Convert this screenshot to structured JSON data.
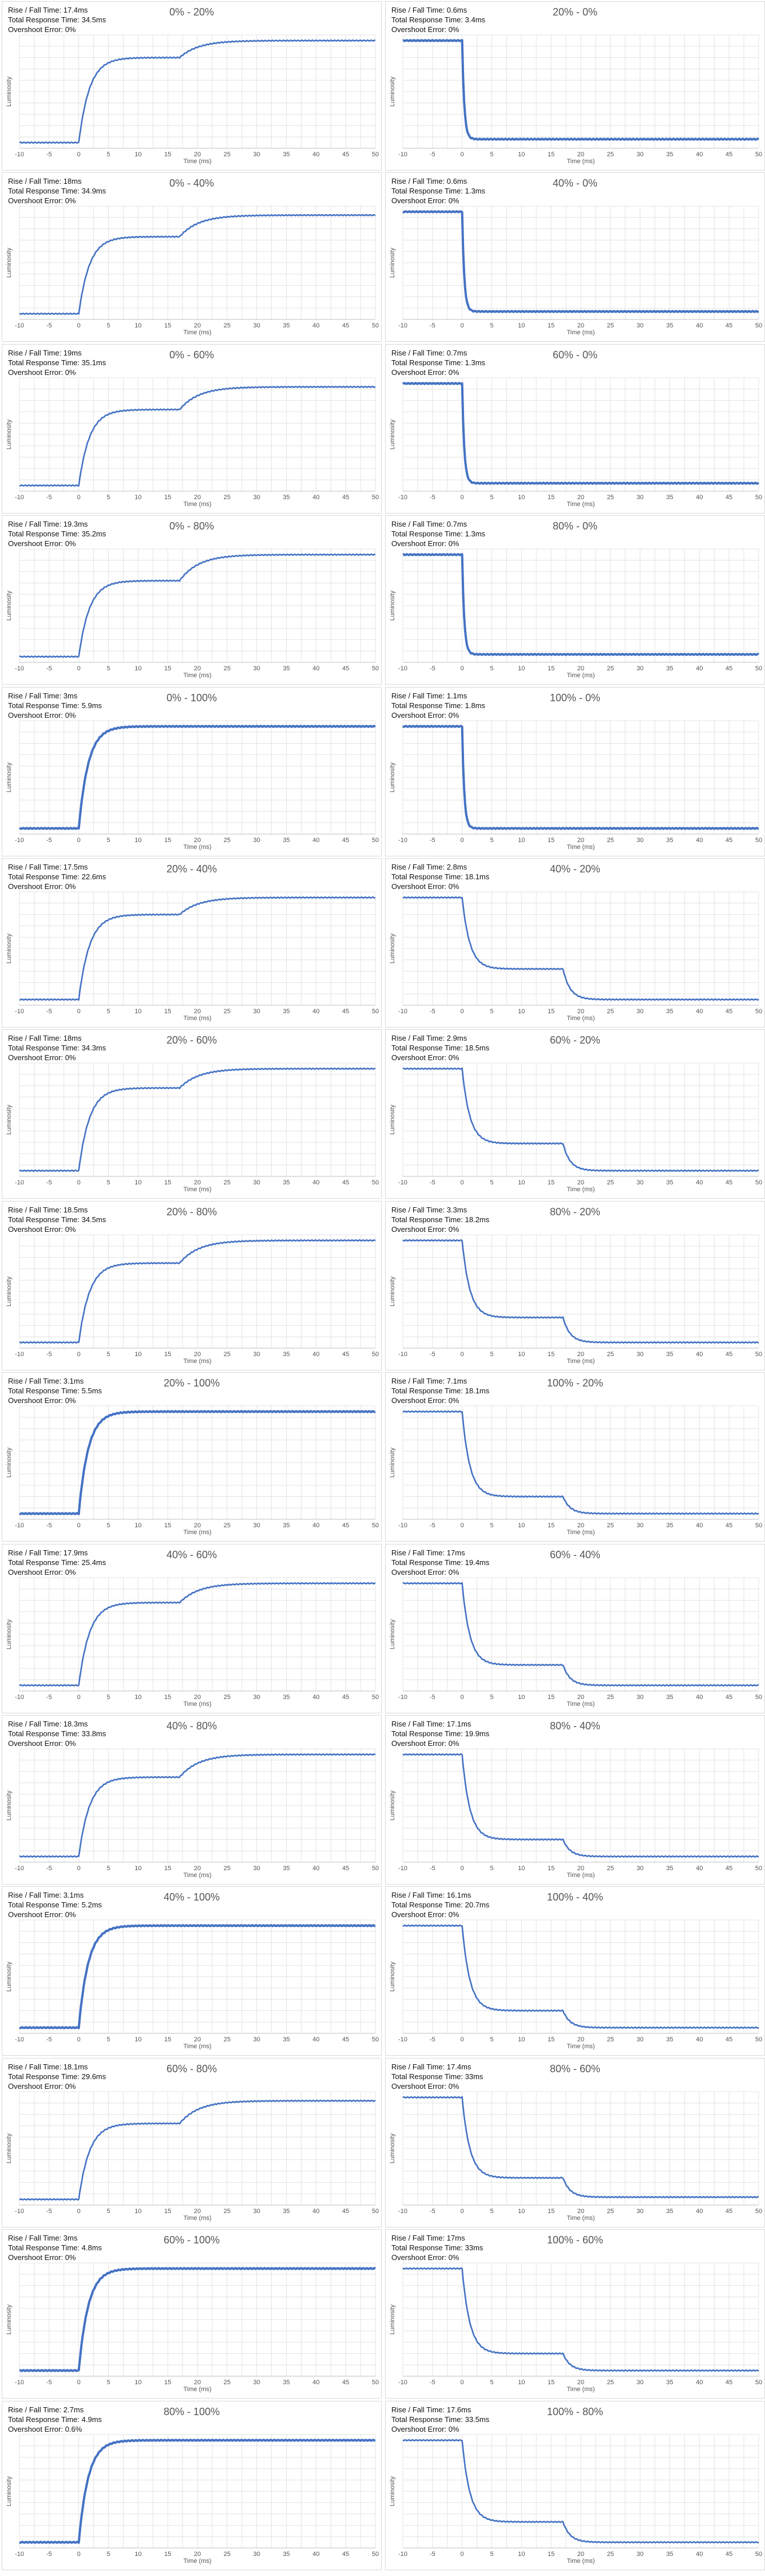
{
  "chart_common": {
    "xlabel": "Time (ms)",
    "ylabel": "Luminosity",
    "xlim": [
      -10,
      50
    ],
    "xticks": [
      -10,
      -5,
      0,
      5,
      10,
      15,
      20,
      25,
      30,
      35,
      40,
      45,
      50
    ],
    "grid": true,
    "line_color": "#4472c4"
  },
  "chart_data": [
    {
      "type": "line",
      "title": "0% - 20%",
      "stats": [
        "Rise / Fall Time: 17.4ms",
        "Total Response Time: 34.5ms",
        "Overshoot Error: 0%"
      ],
      "start": 0.05,
      "plateau": 0.8,
      "end": 0.95,
      "dir": "rise",
      "fast": false
    },
    {
      "type": "line",
      "title": "20% - 0%",
      "stats": [
        "Rise / Fall Time: 0.6ms",
        "Total Response Time: 3.4ms",
        "Overshoot Error: 0%"
      ],
      "start": 0.95,
      "plateau": 0.08,
      "end": 0.05,
      "dir": "fall",
      "fast": true
    },
    {
      "type": "line",
      "title": "0% - 40%",
      "stats": [
        "Rise / Fall Time: 18ms",
        "Total Response Time: 34.9ms",
        "Overshoot Error: 0%"
      ],
      "start": 0.05,
      "plateau": 0.73,
      "end": 0.92,
      "dir": "rise",
      "fast": false
    },
    {
      "type": "line",
      "title": "40% - 0%",
      "stats": [
        "Rise / Fall Time: 0.6ms",
        "Total Response Time: 1.3ms",
        "Overshoot Error: 0%"
      ],
      "start": 0.95,
      "plateau": 0.07,
      "end": 0.05,
      "dir": "fall",
      "fast": true
    },
    {
      "type": "line",
      "title": "0% - 60%",
      "stats": [
        "Rise / Fall Time: 19ms",
        "Total Response Time: 35.1ms",
        "Overshoot Error: 0%"
      ],
      "start": 0.05,
      "plateau": 0.72,
      "end": 0.92,
      "dir": "rise",
      "fast": false
    },
    {
      "type": "line",
      "title": "60% - 0%",
      "stats": [
        "Rise / Fall Time: 0.7ms",
        "Total Response Time: 1.3ms",
        "Overshoot Error: 0%"
      ],
      "start": 0.95,
      "plateau": 0.07,
      "end": 0.05,
      "dir": "fall",
      "fast": true
    },
    {
      "type": "line",
      "title": "0% - 80%",
      "stats": [
        "Rise / Fall Time: 19.3ms",
        "Total Response Time: 35.2ms",
        "Overshoot Error: 0%"
      ],
      "start": 0.05,
      "plateau": 0.72,
      "end": 0.95,
      "dir": "rise",
      "fast": false
    },
    {
      "type": "line",
      "title": "80% - 0%",
      "stats": [
        "Rise / Fall Time: 0.7ms",
        "Total Response Time: 1.3ms",
        "Overshoot Error: 0%"
      ],
      "start": 0.95,
      "plateau": 0.07,
      "end": 0.05,
      "dir": "fall",
      "fast": true
    },
    {
      "type": "line",
      "title": "0% - 100%",
      "stats": [
        "Rise / Fall Time: 3ms",
        "Total Response Time: 5.9ms",
        "Overshoot Error: 0%"
      ],
      "start": 0.05,
      "plateau": 0.95,
      "end": 0.95,
      "dir": "rise",
      "fast": true
    },
    {
      "type": "line",
      "title": "100% - 0%",
      "stats": [
        "Rise / Fall Time: 1.1ms",
        "Total Response Time: 1.8ms",
        "Overshoot Error: 0%"
      ],
      "start": 0.95,
      "plateau": 0.05,
      "end": 0.05,
      "dir": "fall",
      "fast": true
    },
    {
      "type": "line",
      "title": "20% - 40%",
      "stats": [
        "Rise / Fall Time: 17.5ms",
        "Total Response Time: 22.6ms",
        "Overshoot Error: 0%"
      ],
      "start": 0.05,
      "plateau": 0.8,
      "end": 0.95,
      "dir": "rise",
      "fast": false
    },
    {
      "type": "line",
      "title": "40% - 20%",
      "stats": [
        "Rise / Fall Time: 2.8ms",
        "Total Response Time: 18.1ms",
        "Overshoot Error: 0%"
      ],
      "start": 0.95,
      "plateau": 0.32,
      "end": 0.05,
      "dir": "fall",
      "fast": false
    },
    {
      "type": "line",
      "title": "20% - 60%",
      "stats": [
        "Rise / Fall Time: 18ms",
        "Total Response Time: 34.3ms",
        "Overshoot Error: 0%"
      ],
      "start": 0.05,
      "plateau": 0.78,
      "end": 0.95,
      "dir": "rise",
      "fast": false
    },
    {
      "type": "line",
      "title": "60% - 20%",
      "stats": [
        "Rise / Fall Time: 2.9ms",
        "Total Response Time: 18.5ms",
        "Overshoot Error: 0%"
      ],
      "start": 0.95,
      "plateau": 0.29,
      "end": 0.05,
      "dir": "fall",
      "fast": false
    },
    {
      "type": "line",
      "title": "20% - 80%",
      "stats": [
        "Rise / Fall Time: 18.5ms",
        "Total Response Time: 34.5ms",
        "Overshoot Error: 0%"
      ],
      "start": 0.05,
      "plateau": 0.75,
      "end": 0.95,
      "dir": "rise",
      "fast": false
    },
    {
      "type": "line",
      "title": "80% - 20%",
      "stats": [
        "Rise / Fall Time: 3.3ms",
        "Total Response Time: 18.2ms",
        "Overshoot Error: 0%"
      ],
      "start": 0.95,
      "plateau": 0.27,
      "end": 0.05,
      "dir": "fall",
      "fast": false
    },
    {
      "type": "line",
      "title": "20% - 100%",
      "stats": [
        "Rise / Fall Time: 3.1ms",
        "Total Response Time: 5.5ms",
        "Overshoot Error: 0%"
      ],
      "start": 0.05,
      "plateau": 0.95,
      "end": 0.95,
      "dir": "rise",
      "fast": true
    },
    {
      "type": "line",
      "title": "100% - 20%",
      "stats": [
        "Rise / Fall Time: 7.1ms",
        "Total Response Time: 18.1ms",
        "Overshoot Error: 0%"
      ],
      "start": 0.95,
      "plateau": 0.2,
      "end": 0.05,
      "dir": "fall",
      "fast": false
    },
    {
      "type": "line",
      "title": "40% - 60%",
      "stats": [
        "Rise / Fall Time: 17.9ms",
        "Total Response Time: 25.4ms",
        "Overshoot Error: 0%"
      ],
      "start": 0.05,
      "plateau": 0.78,
      "end": 0.95,
      "dir": "rise",
      "fast": false
    },
    {
      "type": "line",
      "title": "60% - 40%",
      "stats": [
        "Rise / Fall Time: 17ms",
        "Total Response Time: 19.4ms",
        "Overshoot Error: 0%"
      ],
      "start": 0.95,
      "plateau": 0.23,
      "end": 0.05,
      "dir": "fall",
      "fast": false
    },
    {
      "type": "line",
      "title": "40% - 80%",
      "stats": [
        "Rise / Fall Time: 18.3ms",
        "Total Response Time: 33.8ms",
        "Overshoot Error: 0%"
      ],
      "start": 0.05,
      "plateau": 0.75,
      "end": 0.95,
      "dir": "rise",
      "fast": false
    },
    {
      "type": "line",
      "title": "80% - 40%",
      "stats": [
        "Rise / Fall Time: 17.1ms",
        "Total Response Time: 19.9ms",
        "Overshoot Error: 0%"
      ],
      "start": 0.95,
      "plateau": 0.2,
      "end": 0.05,
      "dir": "fall",
      "fast": false
    },
    {
      "type": "line",
      "title": "40% - 100%",
      "stats": [
        "Rise / Fall Time: 3.1ms",
        "Total Response Time: 5.2ms",
        "Overshoot Error: 0%"
      ],
      "start": 0.05,
      "plateau": 0.95,
      "end": 0.95,
      "dir": "rise",
      "fast": true
    },
    {
      "type": "line",
      "title": "100% - 40%",
      "stats": [
        "Rise / Fall Time: 16.1ms",
        "Total Response Time: 20.7ms",
        "Overshoot Error: 0%"
      ],
      "start": 0.95,
      "plateau": 0.2,
      "end": 0.05,
      "dir": "fall",
      "fast": false
    },
    {
      "type": "line",
      "title": "60% - 80%",
      "stats": [
        "Rise / Fall Time: 18.1ms",
        "Total Response Time: 29.6ms",
        "Overshoot Error: 0%"
      ],
      "start": 0.05,
      "plateau": 0.72,
      "end": 0.92,
      "dir": "rise",
      "fast": false
    },
    {
      "type": "line",
      "title": "80% - 60%",
      "stats": [
        "Rise / Fall Time: 17.4ms",
        "Total Response Time: 33ms",
        "Overshoot Error: 0%"
      ],
      "start": 0.95,
      "plateau": 0.24,
      "end": 0.07,
      "dir": "fall",
      "fast": false
    },
    {
      "type": "line",
      "title": "60% - 100%",
      "stats": [
        "Rise / Fall Time: 3ms",
        "Total Response Time: 4.8ms",
        "Overshoot Error: 0%"
      ],
      "start": 0.05,
      "plateau": 0.95,
      "end": 0.95,
      "dir": "rise",
      "fast": true
    },
    {
      "type": "line",
      "title": "100% - 60%",
      "stats": [
        "Rise / Fall Time: 17ms",
        "Total Response Time: 33ms",
        "Overshoot Error: 0%"
      ],
      "start": 0.95,
      "plateau": 0.2,
      "end": 0.05,
      "dir": "fall",
      "fast": false
    },
    {
      "type": "line",
      "title": "80% - 100%",
      "stats": [
        "Rise / Fall Time: 2.7ms",
        "Total Response Time: 4.9ms",
        "Overshoot Error: 0.6%"
      ],
      "start": 0.05,
      "plateau": 0.95,
      "end": 0.95,
      "dir": "rise",
      "fast": true
    },
    {
      "type": "line",
      "title": "100% - 80%",
      "stats": [
        "Rise / Fall Time: 17.6ms",
        "Total Response Time: 33.5ms",
        "Overshoot Error: 0%"
      ],
      "start": 0.95,
      "plateau": 0.23,
      "end": 0.05,
      "dir": "fall",
      "fast": false
    }
  ]
}
